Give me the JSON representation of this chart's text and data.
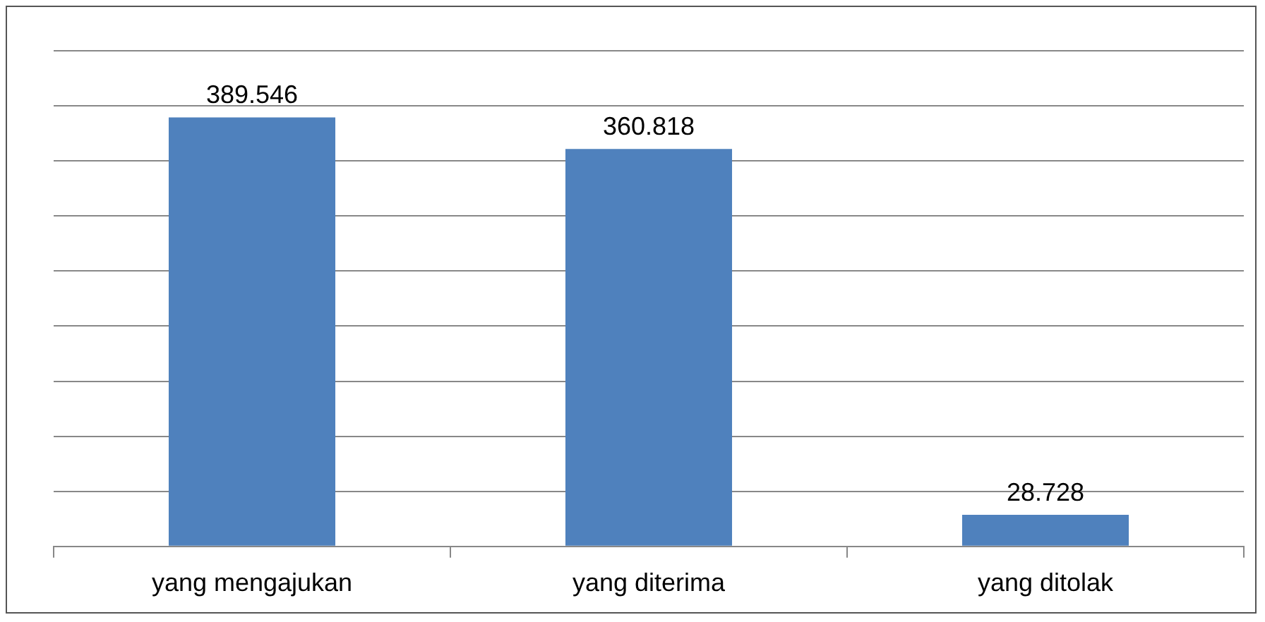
{
  "chart_data": {
    "type": "bar",
    "categories": [
      "yang mengajukan",
      "yang diterima",
      "yang ditolak"
    ],
    "values": [
      389546,
      360818,
      28728
    ],
    "value_labels": [
      "389.546",
      "360.818",
      "28.728"
    ],
    "color": "#4f81bd",
    "ylim": [
      0,
      450000
    ],
    "yticks": [
      {
        "value": 0,
        "label": null
      },
      {
        "value": 50000,
        "label": null
      },
      {
        "value": 100000,
        "label": null
      },
      {
        "value": 150000,
        "label": null
      },
      {
        "value": 200000,
        "label": null
      },
      {
        "value": 250000,
        "label": null
      },
      {
        "value": 300000,
        "label": null
      },
      {
        "value": 350000,
        "label": null
      },
      {
        "value": 400000,
        "label": null
      },
      {
        "value": 450000,
        "label": null
      }
    ],
    "grid": "y",
    "tick_labels": "x",
    "legend": false
  }
}
